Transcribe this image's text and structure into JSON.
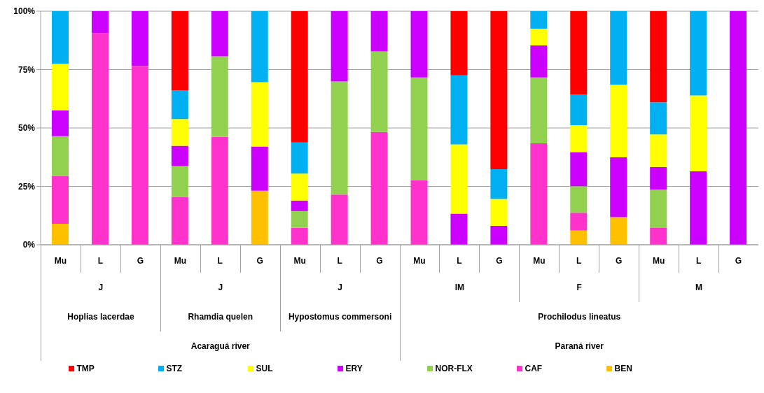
{
  "chart_data": {
    "type": "bar",
    "stacked": true,
    "categories": [
      "Mu",
      "L",
      "G",
      "Mu",
      "L",
      "G",
      "Mu",
      "L",
      "G",
      "Mu",
      "L",
      "G",
      "Mu",
      "L",
      "G",
      "Mu",
      "L",
      "G"
    ],
    "series": [
      {
        "name": "BEN",
        "color": "#ffc000",
        "values": [
          9,
          null,
          null,
          null,
          null,
          23.1,
          null,
          null,
          null,
          null,
          null,
          null,
          null,
          6.1,
          11.8,
          null,
          null,
          null
        ]
      },
      {
        "name": "CAF",
        "color": "#ff33cc",
        "values": [
          20.5,
          90.6,
          76.6,
          20.5,
          46.2,
          null,
          7.3,
          21.5,
          48.3,
          27.6,
          null,
          null,
          43.4,
          7.6,
          null,
          7.4,
          null,
          null
        ]
      },
      {
        "name": "NOR-FLX",
        "color": "#92d050",
        "values": [
          17,
          null,
          null,
          13.2,
          34.5,
          null,
          7.1,
          48.4,
          34.5,
          44,
          null,
          null,
          28.2,
          11.4,
          null,
          16.2,
          null,
          null
        ]
      },
      {
        "name": "ERY",
        "color": "#cc00ff",
        "values": [
          11,
          9.4,
          23.4,
          8.7,
          19.3,
          19,
          4.5,
          30.1,
          17.2,
          28.4,
          13.3,
          8.1,
          13.7,
          14.6,
          25.6,
          9.7,
          31.4,
          100
        ]
      },
      {
        "name": "SUL",
        "color": "#ffff00",
        "values": [
          20,
          null,
          null,
          11.4,
          null,
          27.5,
          11.6,
          null,
          null,
          null,
          29.7,
          11.5,
          7.2,
          11.5,
          31.1,
          13.9,
          32.5,
          null
        ]
      },
      {
        "name": "STZ",
        "color": "#00b0f0",
        "values": [
          22.5,
          null,
          null,
          12.4,
          null,
          30.4,
          13.3,
          null,
          null,
          null,
          29.5,
          12.7,
          7.5,
          13,
          31.5,
          13.8,
          36.1,
          null
        ]
      },
      {
        "name": "TMP",
        "color": "#ff0000",
        "values": [
          null,
          null,
          null,
          33.8,
          null,
          null,
          56.2,
          null,
          null,
          null,
          27.5,
          67.7,
          null,
          35.8,
          null,
          39,
          null,
          null
        ]
      }
    ],
    "ylim": [
      0,
      100
    ],
    "yticks": [
      {
        "value": 0,
        "label": "0%"
      },
      {
        "value": 25,
        "label": "25%"
      },
      {
        "value": 50,
        "label": "50%"
      },
      {
        "value": 75,
        "label": "75%"
      },
      {
        "value": 100,
        "label": "100%"
      }
    ],
    "grid": "y",
    "legend": "bottom",
    "annotations": [
      "J",
      "J",
      "J",
      "IM",
      "F",
      "M",
      "Hoplias lacerdae",
      "Rhamdia quelen",
      "Hypostomus commersoni",
      "Prochilodus lineatus",
      "Acaraguá river",
      "Paraná river"
    ]
  }
}
